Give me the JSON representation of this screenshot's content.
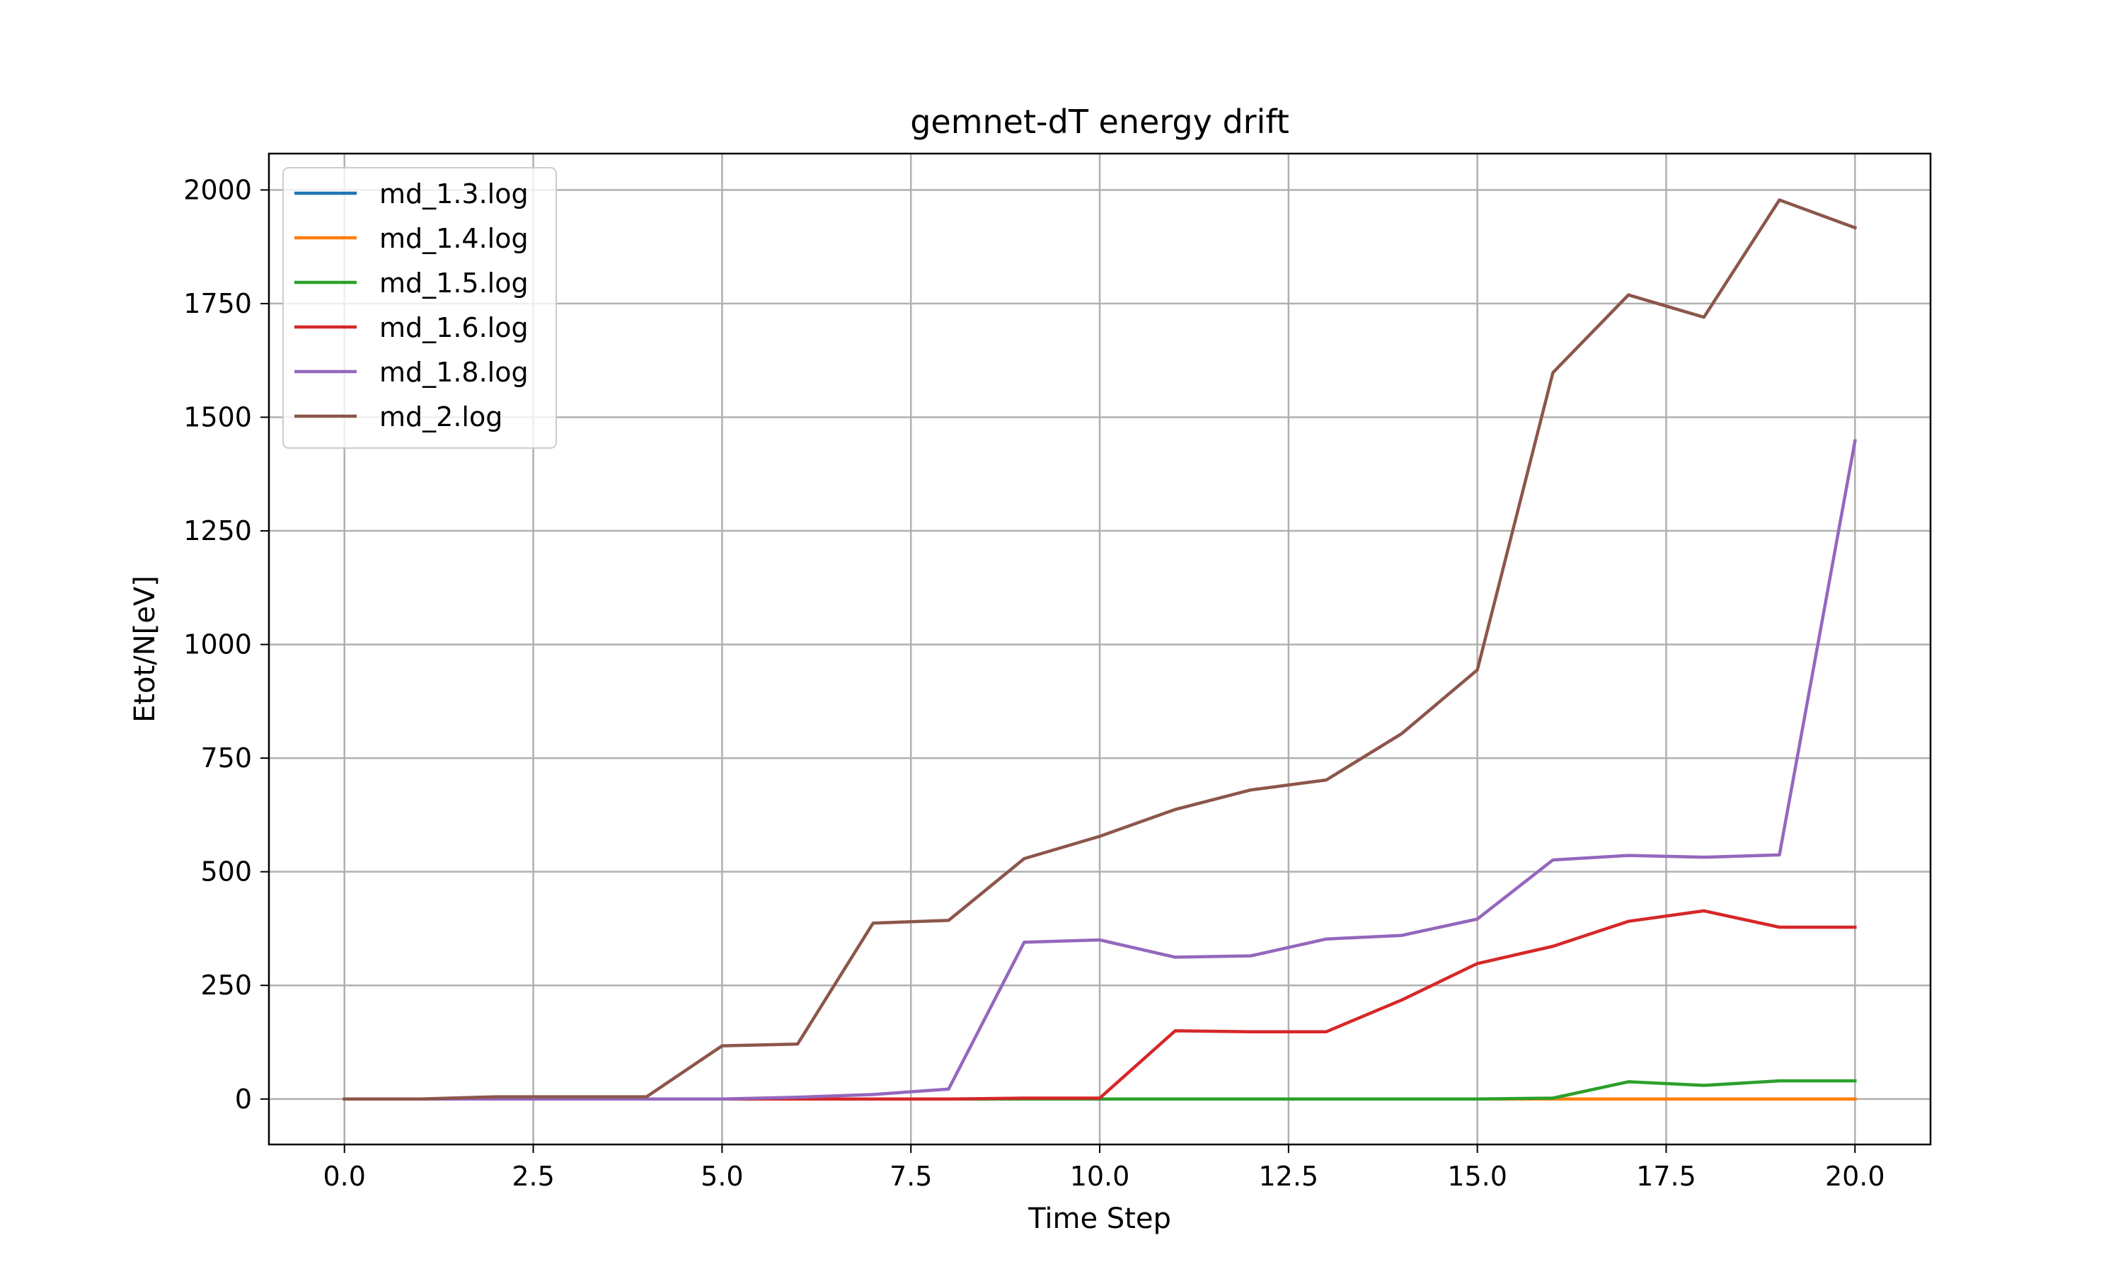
{
  "chart_data": {
    "type": "line",
    "title": "gemnet-dT energy drift",
    "xlabel": "Time Step",
    "ylabel": "Etot/N[eV]",
    "xlim": [
      -1.0,
      21.0
    ],
    "ylim": [
      -100,
      2080
    ],
    "xticks": [
      0.0,
      2.5,
      5.0,
      7.5,
      10.0,
      12.5,
      15.0,
      17.5,
      20.0
    ],
    "xtick_labels": [
      "0.0",
      "2.5",
      "5.0",
      "7.5",
      "10.0",
      "12.5",
      "15.0",
      "17.5",
      "20.0"
    ],
    "yticks": [
      0,
      250,
      500,
      750,
      1000,
      1250,
      1500,
      1750,
      2000
    ],
    "ytick_labels": [
      "0",
      "250",
      "500",
      "750",
      "1000",
      "1250",
      "1500",
      "1750",
      "2000"
    ],
    "grid": true,
    "legend_position": "top-left",
    "x": [
      0,
      1,
      2,
      3,
      4,
      5,
      6,
      7,
      8,
      9,
      10,
      11,
      12,
      13,
      14,
      15,
      16,
      17,
      18,
      19,
      20
    ],
    "series": [
      {
        "name": "md_1.3.log",
        "color": "#1f77b4",
        "values": [
          0,
          0,
          0,
          0,
          0,
          0,
          0,
          0,
          0,
          0,
          0,
          0,
          0,
          0,
          0,
          0,
          0,
          0,
          0,
          0,
          0
        ]
      },
      {
        "name": "md_1.4.log",
        "color": "#ff7f0e",
        "values": [
          0,
          0,
          0,
          0,
          0,
          0,
          0,
          0,
          0,
          0,
          0,
          0,
          0,
          0,
          0,
          0,
          0,
          0,
          0,
          0,
          0
        ]
      },
      {
        "name": "md_1.5.log",
        "color": "#2ca02c",
        "values": [
          0,
          0,
          0,
          0,
          0,
          0,
          0,
          0,
          0,
          0,
          0,
          0,
          0,
          0,
          0,
          0,
          2,
          38,
          30,
          40,
          40
        ]
      },
      {
        "name": "md_1.6.log",
        "color": "#d62728",
        "values": [
          0,
          0,
          0,
          0,
          0,
          0,
          0,
          0,
          0,
          2,
          2,
          150,
          148,
          148,
          218,
          298,
          336,
          391,
          414,
          378,
          378
        ]
      },
      {
        "name": "md_1.8.log",
        "color": "#9467bd",
        "values": [
          0,
          0,
          0,
          0,
          0,
          0,
          4,
          10,
          22,
          345,
          350,
          312,
          315,
          352,
          360,
          396,
          526,
          536,
          532,
          537,
          1448
        ]
      },
      {
        "name": "md_2.log",
        "color": "#8c564b",
        "values": [
          0,
          0,
          5,
          5,
          5,
          117,
          121,
          387,
          393,
          529,
          578,
          637,
          680,
          702,
          804,
          944,
          1598,
          1769,
          1720,
          1978,
          1917
        ]
      }
    ]
  }
}
